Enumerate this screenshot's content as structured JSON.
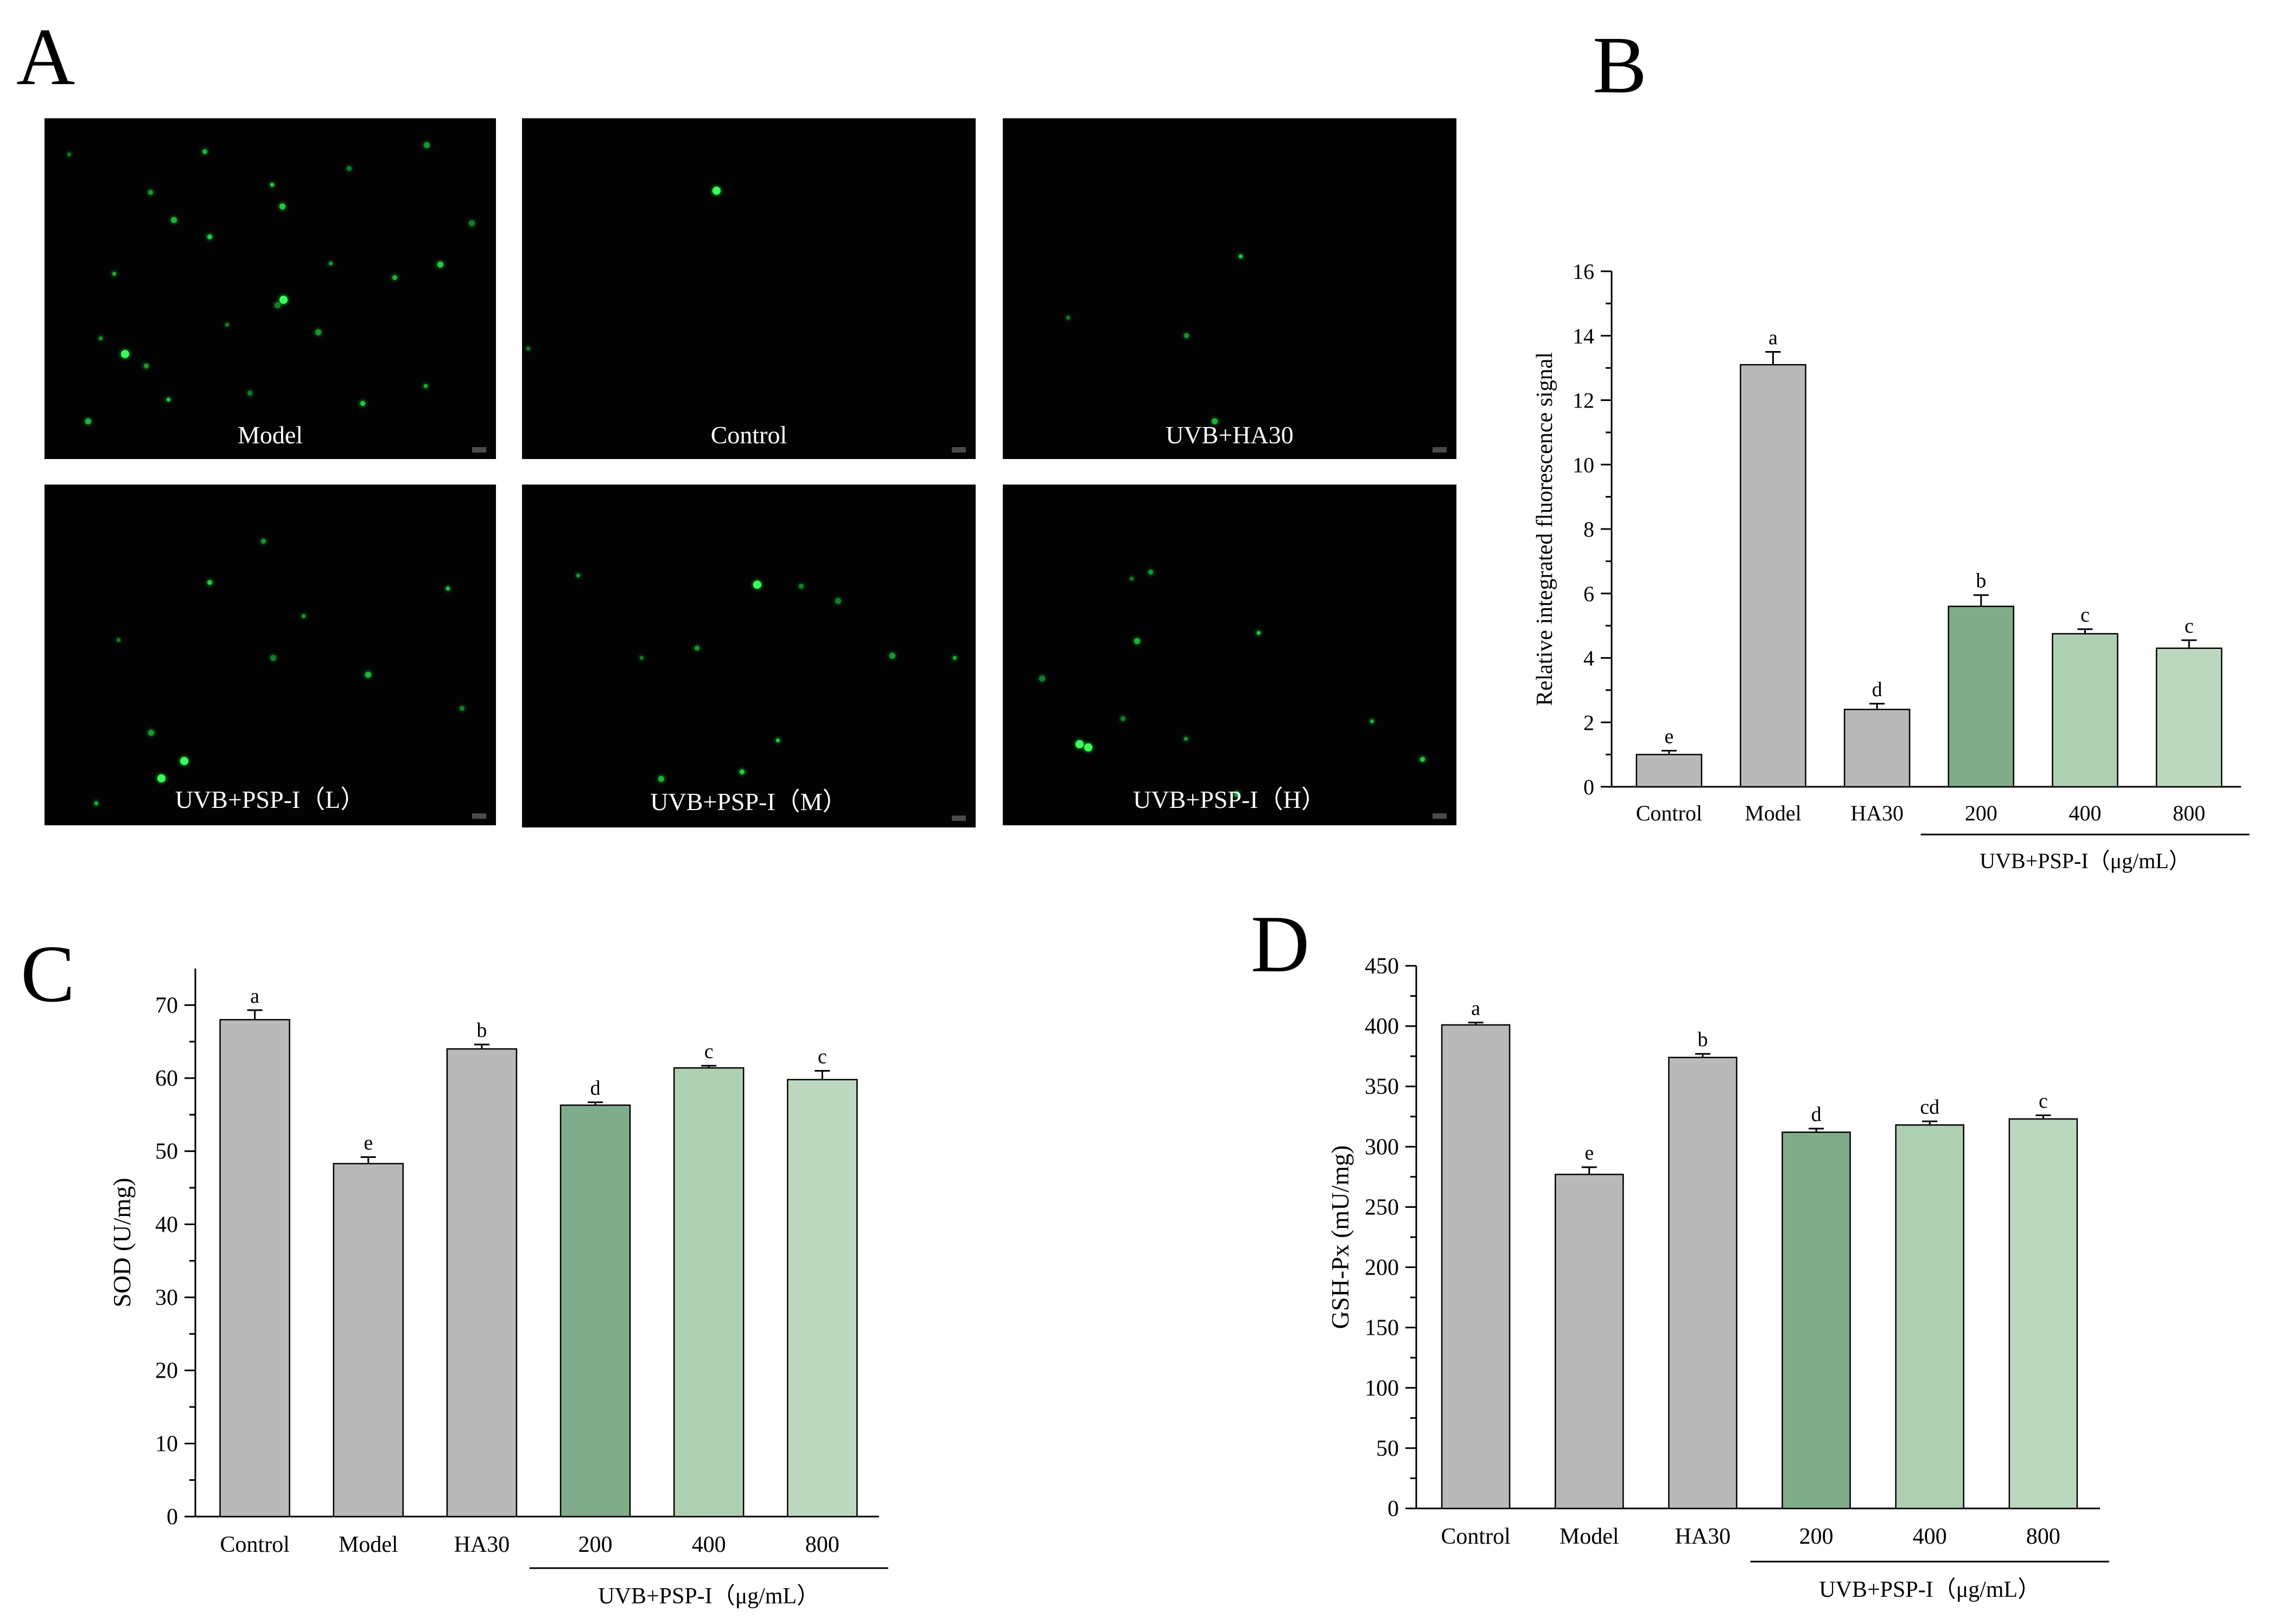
{
  "panel_letters": {
    "a": "A",
    "b": "B",
    "c": "C",
    "d": "D"
  },
  "micrographs": [
    {
      "label": "Model",
      "dots": [
        [
          0.05,
          0.1
        ],
        [
          0.23,
          0.21
        ],
        [
          0.28,
          0.29
        ],
        [
          0.5,
          0.19
        ],
        [
          0.67,
          0.14
        ],
        [
          0.84,
          0.07
        ],
        [
          0.15,
          0.45
        ],
        [
          0.36,
          0.34
        ],
        [
          0.51,
          0.54
        ],
        [
          0.63,
          0.42
        ],
        [
          0.77,
          0.46
        ],
        [
          0.87,
          0.42
        ],
        [
          0.4,
          0.6
        ],
        [
          0.22,
          0.72
        ],
        [
          0.09,
          0.88
        ],
        [
          0.27,
          0.82
        ],
        [
          0.45,
          0.8
        ],
        [
          0.6,
          0.62
        ],
        [
          0.84,
          0.78
        ],
        [
          0.7,
          0.83
        ],
        [
          0.94,
          0.3
        ],
        [
          0.12,
          0.64
        ],
        [
          0.35,
          0.09
        ],
        [
          0.52,
          0.25
        ]
      ],
      "big": [
        [
          0.52,
          0.52
        ],
        [
          0.17,
          0.68
        ]
      ]
    },
    {
      "label": "Control",
      "dots": [
        [
          0.01,
          0.67
        ]
      ],
      "big": [
        [
          0.42,
          0.2
        ]
      ]
    },
    {
      "label": "UVB+HA30",
      "dots": [
        [
          0.14,
          0.58
        ],
        [
          0.4,
          0.63
        ],
        [
          0.46,
          0.88
        ],
        [
          0.52,
          0.4
        ]
      ],
      "big": []
    },
    {
      "label": "UVB+PSP-I（L）",
      "dots": [
        [
          0.16,
          0.45
        ],
        [
          0.48,
          0.16
        ],
        [
          0.71,
          0.55
        ],
        [
          0.89,
          0.3
        ],
        [
          0.92,
          0.65
        ],
        [
          0.23,
          0.72
        ],
        [
          0.11,
          0.93
        ],
        [
          0.36,
          0.28
        ],
        [
          0.5,
          0.5
        ],
        [
          0.57,
          0.38
        ]
      ],
      "big": [
        [
          0.3,
          0.8
        ],
        [
          0.25,
          0.85
        ]
      ]
    },
    {
      "label": "UVB+PSP-I（M）",
      "dots": [
        [
          0.26,
          0.5
        ],
        [
          0.38,
          0.47
        ],
        [
          0.3,
          0.85
        ],
        [
          0.56,
          0.74
        ],
        [
          0.61,
          0.29
        ],
        [
          0.81,
          0.49
        ],
        [
          0.95,
          0.5
        ],
        [
          0.48,
          0.83
        ],
        [
          0.69,
          0.33
        ],
        [
          0.12,
          0.26
        ]
      ],
      "big": [
        [
          0.51,
          0.28
        ]
      ]
    },
    {
      "label": "UVB+PSP-I（H）",
      "dots": [
        [
          0.28,
          0.27
        ],
        [
          0.32,
          0.25
        ],
        [
          0.29,
          0.45
        ],
        [
          0.56,
          0.43
        ],
        [
          0.26,
          0.68
        ],
        [
          0.51,
          0.9
        ],
        [
          0.81,
          0.69
        ],
        [
          0.92,
          0.8
        ],
        [
          0.08,
          0.56
        ],
        [
          0.4,
          0.74
        ]
      ],
      "big": [
        [
          0.16,
          0.75
        ],
        [
          0.18,
          0.76
        ]
      ]
    }
  ],
  "chart_data": [
    {
      "panel": "B",
      "type": "bar",
      "categories": [
        "Control",
        "Model",
        "HA30",
        "200",
        "400",
        "800"
      ],
      "values": [
        1.0,
        13.1,
        2.4,
        5.6,
        4.75,
        4.3
      ],
      "errors": [
        0.12,
        0.4,
        0.18,
        0.35,
        0.14,
        0.25
      ],
      "letters": [
        "e",
        "a",
        "d",
        "b",
        "c",
        "c"
      ],
      "colors": [
        "#b9b9b9",
        "#b9b9b9",
        "#b9b9b9",
        "#80ac8b",
        "#afcfb2",
        "#bcd8c0"
      ],
      "ylabel": "Relative integrated fluorescence signal",
      "ylim": [
        0,
        16
      ],
      "yticks": [
        "0",
        "2",
        "4",
        "6",
        "8",
        "10",
        "12",
        "14",
        "16"
      ],
      "group_label": "UVB+PSP-I（μg/mL）"
    },
    {
      "panel": "C",
      "type": "bar",
      "categories": [
        "Control",
        "Model",
        "HA30",
        "200",
        "400",
        "800"
      ],
      "values": [
        68.0,
        48.3,
        64.0,
        56.3,
        61.4,
        59.8
      ],
      "errors": [
        1.3,
        0.9,
        0.6,
        0.4,
        0.3,
        1.2
      ],
      "letters": [
        "a",
        "e",
        "b",
        "d",
        "c",
        "c"
      ],
      "colors": [
        "#b9b9b9",
        "#b9b9b9",
        "#b9b9b9",
        "#80ac8b",
        "#afcfb2",
        "#bcd8c0"
      ],
      "ylabel": "SOD (U/mg)",
      "ylim": [
        0,
        75
      ],
      "yticks": [
        "0",
        "10",
        "20",
        "30",
        "40",
        "50",
        "60",
        "70"
      ],
      "group_label": "UVB+PSP-I（μg/mL）"
    },
    {
      "panel": "D",
      "type": "bar",
      "categories": [
        "Control",
        "Model",
        "HA30",
        "200",
        "400",
        "800"
      ],
      "values": [
        401,
        277,
        374,
        312,
        318,
        323
      ],
      "errors": [
        2,
        6,
        3,
        3,
        3,
        3
      ],
      "letters": [
        "a",
        "e",
        "b",
        "d",
        "cd",
        "c"
      ],
      "colors": [
        "#b9b9b9",
        "#b9b9b9",
        "#b9b9b9",
        "#80ac8b",
        "#afcfb2",
        "#bcd8c0"
      ],
      "ylabel": "GSH-Px (mU/mg)",
      "ylim": [
        0,
        450
      ],
      "yticks": [
        "0",
        "50",
        "100",
        "150",
        "200",
        "250",
        "300",
        "350",
        "400",
        "450"
      ],
      "group_label": "UVB+PSP-I（μg/mL）"
    }
  ]
}
